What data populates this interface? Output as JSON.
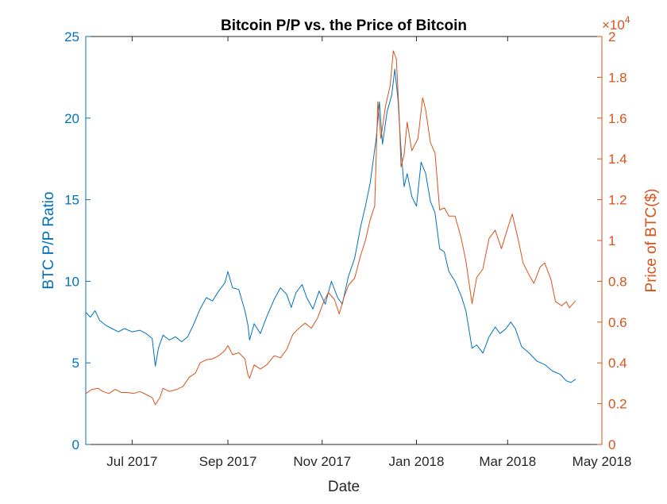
{
  "chart_data": {
    "type": "line",
    "title": "Bitcoin P/P vs. the Price of Bitcoin",
    "xlabel": "Date",
    "ylabel_left": "BTC P/P Ratio",
    "ylabel_right": "Price of BTC($)",
    "right_axis_multiplier": "×10",
    "right_axis_exponent": "4",
    "xlim": [
      "2017-06-01",
      "2018-05-01"
    ],
    "ylim_left": [
      0,
      25
    ],
    "ylim_right": [
      0,
      20000
    ],
    "grid": false,
    "x_ticks": [
      {
        "date": "2017-07-01",
        "label": "Jul 2017"
      },
      {
        "date": "2017-09-01",
        "label": "Sep 2017"
      },
      {
        "date": "2017-11-01",
        "label": "Nov 2017"
      },
      {
        "date": "2018-01-01",
        "label": "Jan 2018"
      },
      {
        "date": "2018-03-01",
        "label": "Mar 2018"
      },
      {
        "date": "2018-05-01",
        "label": "May 2018"
      }
    ],
    "y_ticks_left": [
      {
        "value": 0,
        "label": "0"
      },
      {
        "value": 5,
        "label": "5"
      },
      {
        "value": 10,
        "label": "10"
      },
      {
        "value": 15,
        "label": "15"
      },
      {
        "value": 20,
        "label": "20"
      },
      {
        "value": 25,
        "label": "25"
      }
    ],
    "y_ticks_right": [
      {
        "value": 0,
        "label": "0"
      },
      {
        "value": 2000,
        "label": "0.2"
      },
      {
        "value": 4000,
        "label": "0.4"
      },
      {
        "value": 6000,
        "label": "0.6"
      },
      {
        "value": 8000,
        "label": "0.8"
      },
      {
        "value": 10000,
        "label": "1"
      },
      {
        "value": 12000,
        "label": "1.2"
      },
      {
        "value": 14000,
        "label": "1.4"
      },
      {
        "value": 16000,
        "label": "1.6"
      },
      {
        "value": 18000,
        "label": "1.8"
      },
      {
        "value": 20000,
        "label": "2"
      }
    ],
    "series": [
      {
        "axis": "left",
        "color": "#0072BD",
        "points": [
          [
            "2017-06-01",
            8.1
          ],
          [
            "2017-06-04",
            7.8
          ],
          [
            "2017-06-07",
            8.2
          ],
          [
            "2017-06-10",
            7.6
          ],
          [
            "2017-06-14",
            7.3
          ],
          [
            "2017-06-18",
            7.1
          ],
          [
            "2017-06-22",
            6.9
          ],
          [
            "2017-06-26",
            7.1
          ],
          [
            "2017-07-01",
            6.9
          ],
          [
            "2017-07-06",
            7.0
          ],
          [
            "2017-07-10",
            6.8
          ],
          [
            "2017-07-14",
            6.5
          ],
          [
            "2017-07-16",
            4.8
          ],
          [
            "2017-07-18",
            5.9
          ],
          [
            "2017-07-21",
            6.7
          ],
          [
            "2017-07-25",
            6.4
          ],
          [
            "2017-07-29",
            6.6
          ],
          [
            "2017-08-02",
            6.3
          ],
          [
            "2017-08-06",
            6.6
          ],
          [
            "2017-08-10",
            7.4
          ],
          [
            "2017-08-14",
            8.3
          ],
          [
            "2017-08-18",
            9.0
          ],
          [
            "2017-08-22",
            8.8
          ],
          [
            "2017-08-26",
            9.4
          ],
          [
            "2017-08-30",
            9.9
          ],
          [
            "2017-09-01",
            10.6
          ],
          [
            "2017-09-04",
            9.6
          ],
          [
            "2017-09-08",
            9.5
          ],
          [
            "2017-09-12",
            8.2
          ],
          [
            "2017-09-14",
            7.3
          ],
          [
            "2017-09-15",
            6.4
          ],
          [
            "2017-09-18",
            7.4
          ],
          [
            "2017-09-22",
            6.8
          ],
          [
            "2017-09-26",
            7.8
          ],
          [
            "2017-10-01",
            8.9
          ],
          [
            "2017-10-05",
            9.6
          ],
          [
            "2017-10-09",
            9.2
          ],
          [
            "2017-10-12",
            8.4
          ],
          [
            "2017-10-15",
            9.3
          ],
          [
            "2017-10-19",
            9.8
          ],
          [
            "2017-10-22",
            9.0
          ],
          [
            "2017-10-26",
            8.3
          ],
          [
            "2017-10-30",
            9.4
          ],
          [
            "2017-11-03",
            8.6
          ],
          [
            "2017-11-07",
            10.0
          ],
          [
            "2017-11-11",
            9.0
          ],
          [
            "2017-11-14",
            8.6
          ],
          [
            "2017-11-18",
            10.3
          ],
          [
            "2017-11-22",
            11.4
          ],
          [
            "2017-11-26",
            13.4
          ],
          [
            "2017-11-29",
            14.6
          ],
          [
            "2017-12-02",
            16.0
          ],
          [
            "2017-12-06",
            18.8
          ],
          [
            "2017-12-08",
            21.0
          ],
          [
            "2017-12-10",
            18.4
          ],
          [
            "2017-12-13",
            20.4
          ],
          [
            "2017-12-16",
            21.4
          ],
          [
            "2017-12-18",
            23.0
          ],
          [
            "2017-12-20",
            21.2
          ],
          [
            "2017-12-22",
            18.1
          ],
          [
            "2017-12-24",
            15.8
          ],
          [
            "2017-12-26",
            16.6
          ],
          [
            "2017-12-29",
            15.2
          ],
          [
            "2018-01-01",
            14.6
          ],
          [
            "2018-01-04",
            17.3
          ],
          [
            "2018-01-07",
            16.6
          ],
          [
            "2018-01-10",
            14.9
          ],
          [
            "2018-01-13",
            14.2
          ],
          [
            "2018-01-16",
            12.0
          ],
          [
            "2018-01-19",
            11.8
          ],
          [
            "2018-01-22",
            10.6
          ],
          [
            "2018-01-26",
            10.0
          ],
          [
            "2018-01-30",
            9.1
          ],
          [
            "2018-02-02",
            8.2
          ],
          [
            "2018-02-06",
            5.9
          ],
          [
            "2018-02-09",
            6.1
          ],
          [
            "2018-02-13",
            5.6
          ],
          [
            "2018-02-17",
            6.6
          ],
          [
            "2018-02-21",
            7.2
          ],
          [
            "2018-02-24",
            6.8
          ],
          [
            "2018-02-28",
            7.1
          ],
          [
            "2018-03-03",
            7.5
          ],
          [
            "2018-03-06",
            7.1
          ],
          [
            "2018-03-10",
            6.0
          ],
          [
            "2018-03-15",
            5.6
          ],
          [
            "2018-03-20",
            5.1
          ],
          [
            "2018-03-25",
            4.9
          ],
          [
            "2018-03-30",
            4.5
          ],
          [
            "2018-04-04",
            4.3
          ],
          [
            "2018-04-08",
            3.9
          ],
          [
            "2018-04-11",
            3.8
          ],
          [
            "2018-04-14",
            4.0
          ]
        ]
      },
      {
        "axis": "right",
        "color": "#D95319",
        "points": [
          [
            "2017-06-01",
            2500
          ],
          [
            "2017-06-05",
            2700
          ],
          [
            "2017-06-09",
            2750
          ],
          [
            "2017-06-12",
            2600
          ],
          [
            "2017-06-16",
            2500
          ],
          [
            "2017-06-20",
            2700
          ],
          [
            "2017-06-24",
            2550
          ],
          [
            "2017-06-28",
            2550
          ],
          [
            "2017-07-02",
            2500
          ],
          [
            "2017-07-06",
            2600
          ],
          [
            "2017-07-10",
            2450
          ],
          [
            "2017-07-14",
            2300
          ],
          [
            "2017-07-16",
            1950
          ],
          [
            "2017-07-19",
            2300
          ],
          [
            "2017-07-21",
            2750
          ],
          [
            "2017-07-25",
            2600
          ],
          [
            "2017-07-30",
            2700
          ],
          [
            "2017-08-03",
            2850
          ],
          [
            "2017-08-07",
            3300
          ],
          [
            "2017-08-11",
            3500
          ],
          [
            "2017-08-14",
            4000
          ],
          [
            "2017-08-18",
            4150
          ],
          [
            "2017-08-22",
            4200
          ],
          [
            "2017-08-26",
            4350
          ],
          [
            "2017-08-30",
            4600
          ],
          [
            "2017-09-01",
            4850
          ],
          [
            "2017-09-04",
            4400
          ],
          [
            "2017-09-08",
            4500
          ],
          [
            "2017-09-12",
            4200
          ],
          [
            "2017-09-14",
            3400
          ],
          [
            "2017-09-15",
            3250
          ],
          [
            "2017-09-18",
            3900
          ],
          [
            "2017-09-22",
            3700
          ],
          [
            "2017-09-26",
            3900
          ],
          [
            "2017-10-01",
            4350
          ],
          [
            "2017-10-05",
            4250
          ],
          [
            "2017-10-09",
            4650
          ],
          [
            "2017-10-13",
            5400
          ],
          [
            "2017-10-17",
            5700
          ],
          [
            "2017-10-21",
            5950
          ],
          [
            "2017-10-25",
            5700
          ],
          [
            "2017-10-29",
            6200
          ],
          [
            "2017-11-02",
            7000
          ],
          [
            "2017-11-05",
            7450
          ],
          [
            "2017-11-09",
            7100
          ],
          [
            "2017-11-12",
            6400
          ],
          [
            "2017-11-15",
            7200
          ],
          [
            "2017-11-18",
            7800
          ],
          [
            "2017-11-22",
            8150
          ],
          [
            "2017-11-26",
            9300
          ],
          [
            "2017-11-29",
            10000
          ],
          [
            "2017-12-02",
            11000
          ],
          [
            "2017-12-05",
            11700
          ],
          [
            "2017-12-07",
            16800
          ],
          [
            "2017-12-09",
            15000
          ],
          [
            "2017-12-12",
            16600
          ],
          [
            "2017-12-15",
            17600
          ],
          [
            "2017-12-17",
            19300
          ],
          [
            "2017-12-19",
            18900
          ],
          [
            "2017-12-21",
            15800
          ],
          [
            "2017-12-22",
            13600
          ],
          [
            "2017-12-24",
            14200
          ],
          [
            "2017-12-26",
            15800
          ],
          [
            "2017-12-29",
            14400
          ],
          [
            "2018-01-02",
            15000
          ],
          [
            "2018-01-05",
            17000
          ],
          [
            "2018-01-07",
            16400
          ],
          [
            "2018-01-10",
            14800
          ],
          [
            "2018-01-13",
            14300
          ],
          [
            "2018-01-16",
            11500
          ],
          [
            "2018-01-19",
            11600
          ],
          [
            "2018-01-22",
            11200
          ],
          [
            "2018-01-26",
            11200
          ],
          [
            "2018-01-30",
            10100
          ],
          [
            "2018-02-02",
            9000
          ],
          [
            "2018-02-06",
            6900
          ],
          [
            "2018-02-09",
            8200
          ],
          [
            "2018-02-13",
            8600
          ],
          [
            "2018-02-17",
            10100
          ],
          [
            "2018-02-21",
            10500
          ],
          [
            "2018-02-25",
            9600
          ],
          [
            "2018-03-01",
            10600
          ],
          [
            "2018-03-04",
            11300
          ],
          [
            "2018-03-08",
            10000
          ],
          [
            "2018-03-11",
            8900
          ],
          [
            "2018-03-15",
            8300
          ],
          [
            "2018-03-18",
            7900
          ],
          [
            "2018-03-22",
            8700
          ],
          [
            "2018-03-25",
            8900
          ],
          [
            "2018-03-29",
            8100
          ],
          [
            "2018-04-01",
            7000
          ],
          [
            "2018-04-05",
            6800
          ],
          [
            "2018-04-08",
            7000
          ],
          [
            "2018-04-10",
            6700
          ],
          [
            "2018-04-14",
            7050
          ]
        ]
      }
    ]
  }
}
